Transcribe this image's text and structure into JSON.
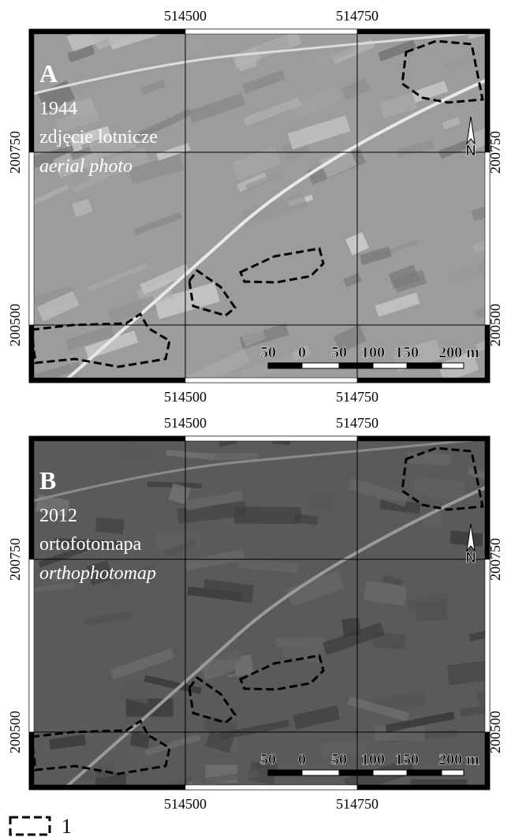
{
  "panels": [
    {
      "letter": "A",
      "year": "1944",
      "title_pl": "zdjęcie lotnicze",
      "title_en": "aerial photo",
      "x_labels": [
        "514500",
        "514750"
      ],
      "y_labels": [
        "200750",
        "200500"
      ],
      "north": "N",
      "scale_labels": [
        "50",
        "0",
        "50",
        "100",
        "150",
        "200 m"
      ]
    },
    {
      "letter": "B",
      "year": "2012",
      "title_pl": "ortofotomapa",
      "title_en": "orthophotomap",
      "x_labels": [
        "514500",
        "514750"
      ],
      "y_labels": [
        "200750",
        "200500"
      ],
      "north": "N",
      "scale_labels": [
        "50",
        "0",
        "50",
        "100",
        "150",
        "200 m"
      ]
    }
  ],
  "legend": {
    "label": "1"
  }
}
